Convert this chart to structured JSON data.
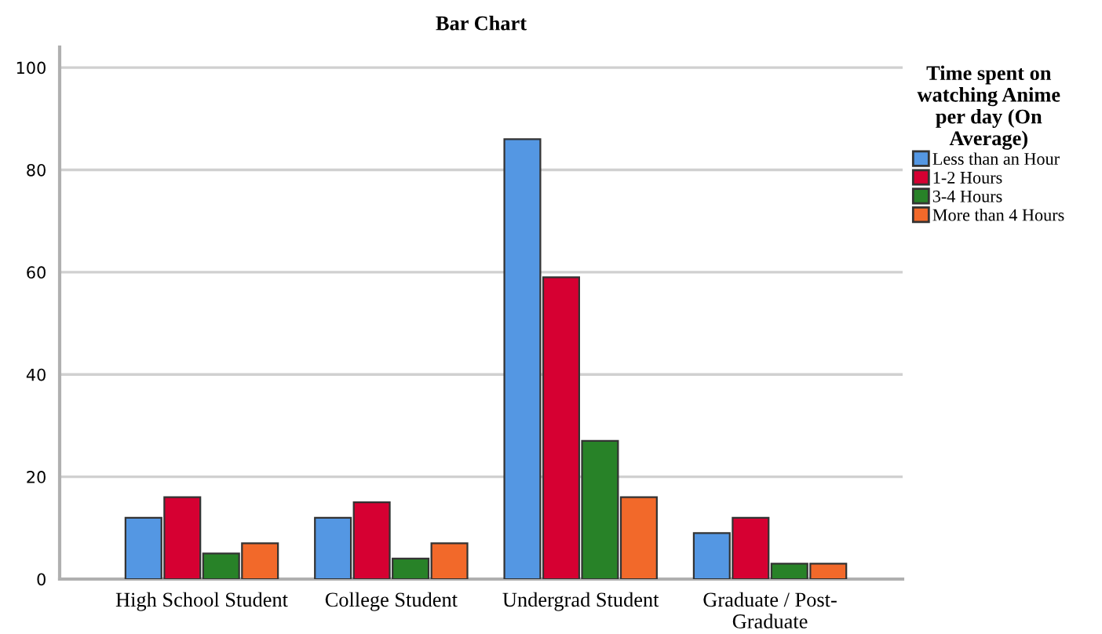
{
  "chart_data": {
    "type": "bar",
    "title": "Bar Chart",
    "categories": [
      "High School Student",
      "College Student",
      "Undergrad Student",
      "Graduate / Post-\nGraduate"
    ],
    "series": [
      {
        "name": "Less than an Hour",
        "color": "#5497e3",
        "values": [
          12,
          12,
          86,
          9
        ]
      },
      {
        "name": "1-2 Hours",
        "color": "#d60032",
        "values": [
          16,
          15,
          59,
          12
        ]
      },
      {
        "name": "3-4 Hours",
        "color": "#288228",
        "values": [
          5,
          4,
          27,
          3
        ]
      },
      {
        "name": "More than 4 Hours",
        "color": "#f2692a",
        "values": [
          7,
          7,
          16,
          3
        ]
      }
    ],
    "legend_title": "Time spent on\nwatching Anime\nper day (On\nAverage)",
    "legend": "right",
    "ylim": [
      0,
      104
    ],
    "yticks": [
      0,
      20,
      40,
      60,
      80,
      100
    ],
    "grid": "y"
  }
}
